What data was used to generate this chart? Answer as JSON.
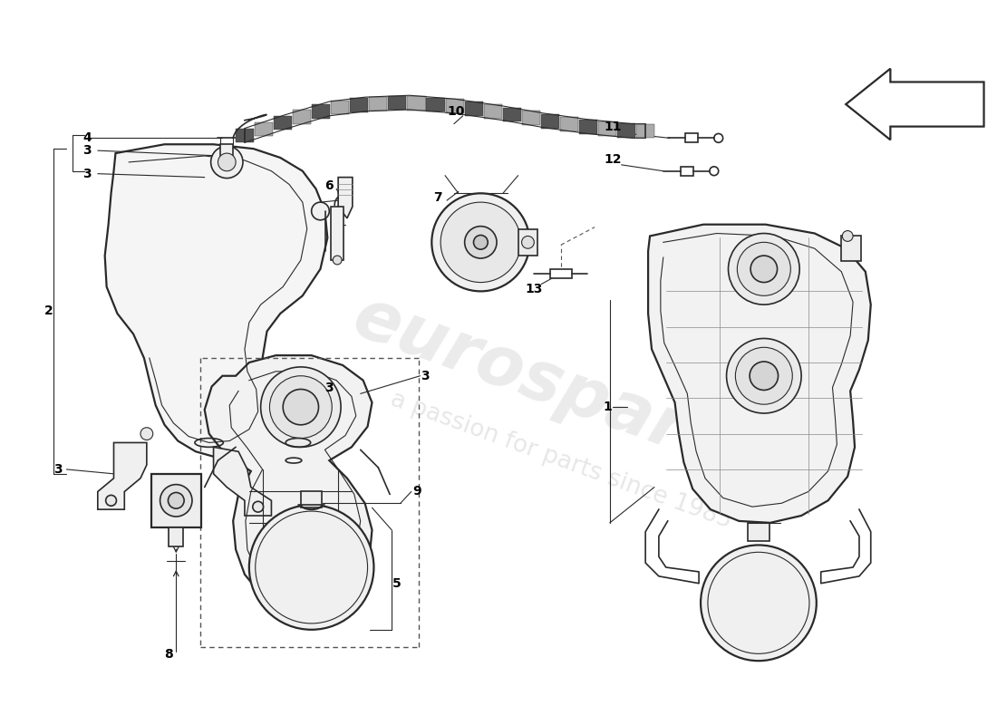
{
  "bg_color": "#ffffff",
  "line_color": "#2a2a2a",
  "wm_color1": "#d0d0d0",
  "wm_color2": "#c8c8c8",
  "figsize": [
    11.0,
    8.0
  ],
  "dpi": 100
}
